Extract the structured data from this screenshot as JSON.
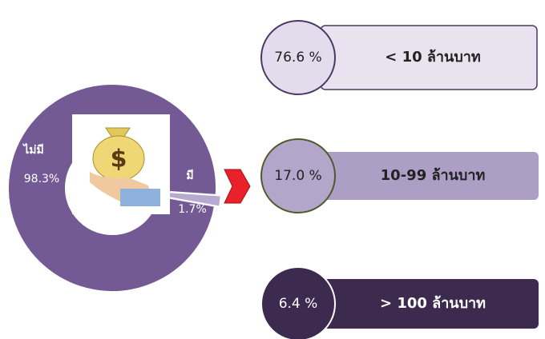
{
  "chart_data": {
    "type": "pie",
    "categories": [
      "ไม่มี",
      "มี"
    ],
    "values": [
      98.3,
      1.7
    ],
    "value_labels": [
      "98.3%",
      "1.7%"
    ],
    "colors": [
      "#735a94",
      "#b7a9d0"
    ]
  },
  "callouts": [
    {
      "percent": "76.6 %",
      "label": "< 10 ล้านบาท"
    },
    {
      "percent": "17.0 %",
      "label": "10-99 ล้านบาท"
    },
    {
      "percent": "6.4 %",
      "label": "> 100 ล้านบาท"
    }
  ]
}
